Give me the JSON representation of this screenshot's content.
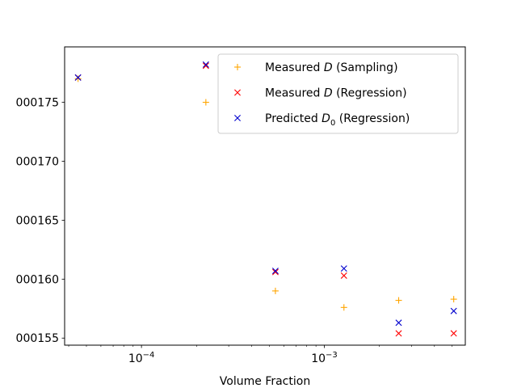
{
  "chart_data": {
    "type": "scatter",
    "title": "",
    "xlabel": "Volume Fraction",
    "ylabel": "",
    "xscale": "log",
    "xlim": [
      3.8e-05,
      0.0059
    ],
    "ylim": [
      0.0001544,
      0.0001797
    ],
    "grid": false,
    "legend_position": "top-right",
    "x_ticks": [
      {
        "value": 0.0001,
        "base": "10",
        "exp": "−4"
      },
      {
        "value": 0.001,
        "base": "10",
        "exp": "−3"
      }
    ],
    "y_ticks": [
      {
        "value": 0.000155,
        "label": "000155"
      },
      {
        "value": 0.00016,
        "label": "000160"
      },
      {
        "value": 0.000165,
        "label": "000165"
      },
      {
        "value": 0.00017,
        "label": "000170"
      },
      {
        "value": 0.000175,
        "label": "000175"
      }
    ],
    "series": [
      {
        "name_parts": {
          "pre": "Measured ",
          "var": "D",
          "sub": "",
          "post": " (Sampling)"
        },
        "marker": "plus",
        "color": "#ffa500",
        "points": [
          {
            "x": 4.5e-05,
            "y": 0.000177
          },
          {
            "x": 0.000225,
            "y": 0.000175
          },
          {
            "x": 0.00054,
            "y": 0.000159
          },
          {
            "x": 0.00128,
            "y": 0.0001576
          },
          {
            "x": 0.00255,
            "y": 0.0001582
          },
          {
            "x": 0.0051,
            "y": 0.0001583
          }
        ]
      },
      {
        "name_parts": {
          "pre": "Measured ",
          "var": "D",
          "sub": "",
          "post": " (Regression)"
        },
        "marker": "x",
        "color": "#ff0000",
        "points": [
          {
            "x": 4.5e-05,
            "y": 0.0001771
          },
          {
            "x": 0.000225,
            "y": 0.0001781
          },
          {
            "x": 0.00054,
            "y": 0.0001606
          },
          {
            "x": 0.00128,
            "y": 0.0001603
          },
          {
            "x": 0.00255,
            "y": 0.0001554
          },
          {
            "x": 0.0051,
            "y": 0.0001554
          }
        ]
      },
      {
        "name_parts": {
          "pre": "Predicted ",
          "var": "D",
          "sub": "0",
          "post": " (Regression)"
        },
        "marker": "x",
        "color": "#0000cd",
        "points": [
          {
            "x": 4.5e-05,
            "y": 0.0001771
          },
          {
            "x": 0.000225,
            "y": 0.0001782
          },
          {
            "x": 0.00054,
            "y": 0.0001607
          },
          {
            "x": 0.00128,
            "y": 0.0001609
          },
          {
            "x": 0.00255,
            "y": 0.0001563
          },
          {
            "x": 0.0051,
            "y": 0.0001573
          }
        ]
      }
    ]
  }
}
